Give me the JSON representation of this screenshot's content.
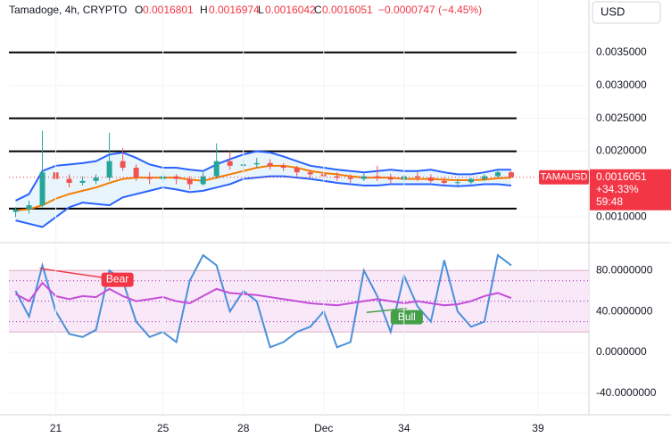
{
  "chart_data": [
    {
      "type": "candlestick",
      "title": "Tamadoge, 4h, CRYPTO",
      "ohlc_labels": [
        "O",
        "H",
        "L",
        "C"
      ],
      "ohlc_values": [
        0.0016801,
        0.0016974,
        0.0016042,
        0.0016051
      ],
      "change": "−0.0000747 (−4.45%)",
      "currency": "USD",
      "price_tag": {
        "symbol": "TAMAUSD",
        "value": 0.0016051,
        "change": "+34.33%",
        "countdown": "59:48",
        "color": "#f23645"
      },
      "up_color": "#26a69a",
      "down_color": "#ef5350",
      "x": [
        19.5,
        20,
        20.5,
        21,
        21.5,
        22,
        22.5,
        23,
        23.5,
        24,
        24.5,
        25,
        25.5,
        26,
        26.5,
        27,
        27.5,
        28,
        28.5,
        29,
        29.5,
        30,
        30.5,
        31,
        31.5,
        32,
        32.5,
        33,
        33.5,
        34,
        34.5,
        35,
        35.5,
        36,
        36.5,
        37,
        37.5,
        38
      ],
      "open": [
        0.00108,
        0.00112,
        0.00118,
        0.00168,
        0.00158,
        0.00152,
        0.00155,
        0.0016,
        0.00185,
        0.00175,
        0.0016,
        0.00158,
        0.00162,
        0.00158,
        0.0015,
        0.00162,
        0.00185,
        0.00178,
        0.0018,
        0.00182,
        0.00178,
        0.00175,
        0.00168,
        0.00165,
        0.00162,
        0.0016,
        0.00158,
        0.00162,
        0.0016,
        0.00157,
        0.00162,
        0.0016,
        0.00155,
        0.00152,
        0.00153,
        0.00158,
        0.00162,
        0.00168
      ],
      "high": [
        0.00115,
        0.00125,
        0.00231,
        0.00175,
        0.00165,
        0.00162,
        0.00165,
        0.00228,
        0.00205,
        0.0018,
        0.00168,
        0.0017,
        0.00165,
        0.00162,
        0.00168,
        0.00212,
        0.002,
        0.00188,
        0.0019,
        0.00188,
        0.00182,
        0.00178,
        0.00172,
        0.0017,
        0.00168,
        0.00165,
        0.00168,
        0.00178,
        0.00166,
        0.00165,
        0.00168,
        0.00165,
        0.0016,
        0.00158,
        0.0016,
        0.00165,
        0.00172,
        0.0017
      ],
      "low": [
        0.001,
        0.00105,
        0.00115,
        0.0015,
        0.00145,
        0.00148,
        0.0015,
        0.00155,
        0.0017,
        0.00155,
        0.0015,
        0.00152,
        0.0015,
        0.00142,
        0.00148,
        0.00158,
        0.00172,
        0.00172,
        0.00175,
        0.00172,
        0.0017,
        0.00162,
        0.0016,
        0.00158,
        0.00155,
        0.00152,
        0.00155,
        0.00155,
        0.0015,
        0.0015,
        0.00155,
        0.00152,
        0.00148,
        0.00148,
        0.0015,
        0.00155,
        0.0016,
        0.0016
      ],
      "close": [
        0.00112,
        0.00118,
        0.00168,
        0.00158,
        0.00152,
        0.00155,
        0.0016,
        0.00185,
        0.00175,
        0.0016,
        0.00158,
        0.00162,
        0.00158,
        0.0015,
        0.00162,
        0.00185,
        0.00178,
        0.0018,
        0.00182,
        0.00178,
        0.00175,
        0.00168,
        0.00165,
        0.00162,
        0.0016,
        0.00158,
        0.00162,
        0.0016,
        0.00157,
        0.00162,
        0.0016,
        0.00155,
        0.00152,
        0.00153,
        0.00158,
        0.00162,
        0.00168,
        0.0016051
      ],
      "series": [
        {
          "color": "#2962ff",
          "values": [
            0.00125,
            0.00135,
            0.0017,
            0.00178,
            0.0018,
            0.00182,
            0.00185,
            0.00195,
            0.00198,
            0.0019,
            0.0018,
            0.00175,
            0.00175,
            0.00172,
            0.0017,
            0.0018,
            0.00188,
            0.00195,
            0.002,
            0.00198,
            0.00192,
            0.00185,
            0.00178,
            0.00175,
            0.00172,
            0.0017,
            0.00168,
            0.0017,
            0.00172,
            0.0017,
            0.0017,
            0.00172,
            0.00168,
            0.00165,
            0.00165,
            0.00168,
            0.00172,
            0.00172
          ]
        },
        {
          "color": "#f57c00",
          "values": [
            0.0011,
            0.00112,
            0.00118,
            0.00128,
            0.00135,
            0.0014,
            0.00145,
            0.00152,
            0.00158,
            0.0016,
            0.0016,
            0.0016,
            0.0016,
            0.00157,
            0.00155,
            0.0016,
            0.00165,
            0.0017,
            0.00175,
            0.00178,
            0.00178,
            0.00175,
            0.0017,
            0.00167,
            0.00165,
            0.00162,
            0.0016,
            0.0016,
            0.0016,
            0.00158,
            0.00158,
            0.00158,
            0.00157,
            0.00156,
            0.00156,
            0.00157,
            0.00159,
            0.0016
          ]
        },
        {
          "color": "#2962ff",
          "values": [
            0.00095,
            0.0009,
            0.00085,
            0.001,
            0.00115,
            0.00122,
            0.0012,
            0.00118,
            0.0013,
            0.00135,
            0.0014,
            0.00145,
            0.00142,
            0.00138,
            0.0014,
            0.00145,
            0.0015,
            0.00158,
            0.0016,
            0.00162,
            0.00162,
            0.0016,
            0.00158,
            0.00155,
            0.00152,
            0.0015,
            0.00148,
            0.00148,
            0.0015,
            0.0015,
            0.0015,
            0.0015,
            0.00148,
            0.00147,
            0.00148,
            0.0015,
            0.0015,
            0.00148
          ]
        }
      ],
      "band_fill": "#e3f2fd",
      "levels": [
        0.0035,
        0.0025,
        0.002,
        0.00113
      ],
      "level_x": [
        19.25,
        38.2
      ],
      "xlim": [
        19.25,
        40.9
      ],
      "ylim": [
        0.00064,
        0.00389
      ],
      "yticks": [
        {
          "value": 0.0035,
          "label": "0.0035000"
        },
        {
          "value": 0.003,
          "label": "0.0030000"
        },
        {
          "value": 0.0025,
          "label": "0.0025000"
        },
        {
          "value": 0.002,
          "label": "0.0020000"
        },
        {
          "value": 0.001,
          "label": "0.0010000"
        }
      ],
      "grid": true
    },
    {
      "type": "line",
      "x": [
        19.5,
        20,
        20.5,
        21,
        21.5,
        22,
        22.5,
        23,
        23.5,
        24,
        24.5,
        25,
        25.5,
        26,
        26.5,
        27,
        27.5,
        28,
        28.5,
        29,
        29.5,
        30,
        30.5,
        31,
        31.5,
        32,
        32.5,
        33,
        33.5,
        34,
        34.5,
        35,
        35.5,
        36,
        36.5,
        37,
        37.5,
        38
      ],
      "series": [
        {
          "color": "#4a90d9",
          "values": [
            60,
            35,
            85,
            40,
            18,
            15,
            22,
            80,
            70,
            30,
            15,
            20,
            10,
            70,
            95,
            85,
            40,
            60,
            50,
            5,
            10,
            20,
            25,
            40,
            5,
            10,
            80,
            55,
            20,
            75,
            45,
            30,
            90,
            40,
            25,
            30,
            95,
            85
          ]
        },
        {
          "color": "#c44fd8",
          "values": [
            57,
            50,
            68,
            55,
            52,
            55,
            54,
            62,
            55,
            50,
            52,
            54,
            50,
            48,
            55,
            62,
            58,
            57,
            56,
            54,
            52,
            50,
            48,
            47,
            46,
            48,
            50,
            52,
            50,
            48,
            50,
            48,
            46,
            47,
            50,
            55,
            58,
            53
          ]
        }
      ],
      "band": [
        20,
        80
      ],
      "band_color": "#f8e8f8",
      "levels": [
        70,
        50,
        30
      ],
      "divergences": [
        {
          "label": "Bear",
          "color": "#f23645",
          "x": [
            20.4,
            23.3
          ],
          "values": [
            82,
            71
          ]
        },
        {
          "label": "Bull",
          "color": "#43a047",
          "x": [
            32.6,
            34.1
          ],
          "values": [
            39,
            43
          ]
        }
      ],
      "xlim": [
        19.25,
        40.9
      ],
      "ylim": [
        -61,
        102
      ],
      "yticks": [
        {
          "value": 80,
          "label": "80.0000000"
        },
        {
          "value": 40,
          "label": "40.0000000"
        },
        {
          "value": 0,
          "label": "0.0000000"
        },
        {
          "value": -40,
          "label": "-40.0000000"
        }
      ],
      "xticks": [
        21,
        25,
        28,
        {
          "value": 31,
          "label": "Dec"
        },
        34,
        39
      ],
      "grid": true
    }
  ]
}
